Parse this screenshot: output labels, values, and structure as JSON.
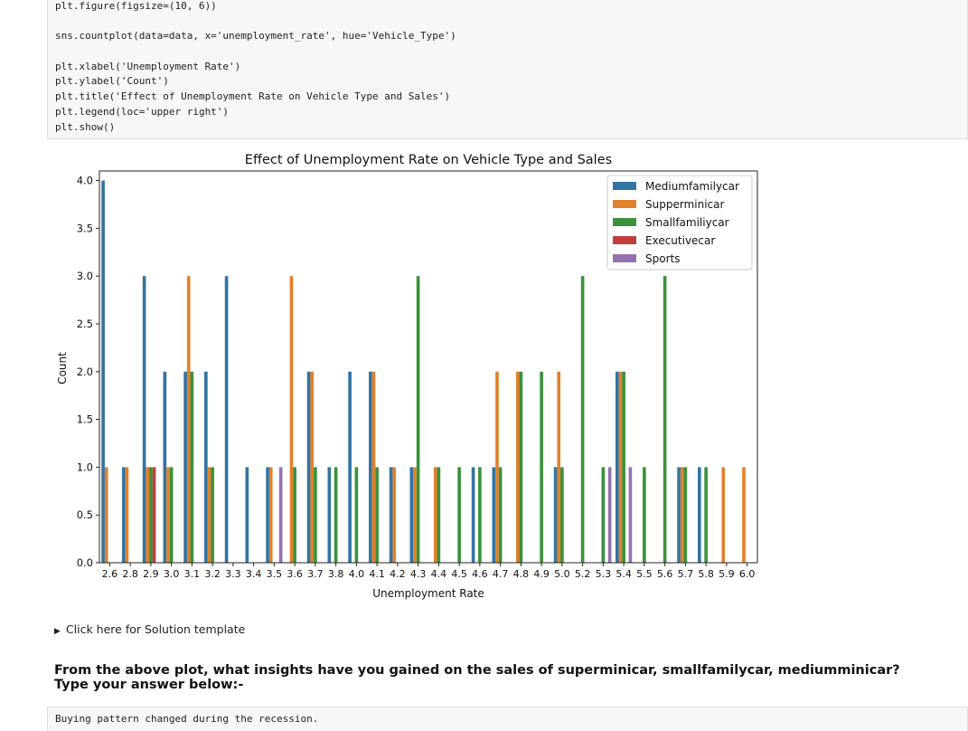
{
  "code_cell": {
    "lines": [
      "plt.figure(figsize=(10, 6))",
      "",
      "sns.countplot(data=data, x='unemployment_rate', hue='Vehicle_Type')",
      "",
      "plt.xlabel('Unemployment Rate')",
      "plt.ylabel('Count')",
      "plt.title('Effect of Unemployment Rate on Vehicle Type and Sales')",
      "plt.legend(loc='upper right')",
      "plt.show()"
    ]
  },
  "chart_data": {
    "type": "bar",
    "title": "Effect of Unemployment Rate on Vehicle Type and Sales",
    "xlabel": "Unemployment Rate",
    "ylabel": "Count",
    "ylim": [
      0,
      4.1
    ],
    "yticks": [
      "0.0",
      "0.5",
      "1.0",
      "1.5",
      "2.0",
      "2.5",
      "3.0",
      "3.5",
      "4.0"
    ],
    "legend_position": "upper right",
    "categories": [
      "2.6",
      "2.8",
      "2.9",
      "3.0",
      "3.1",
      "3.2",
      "3.3",
      "3.4",
      "3.5",
      "3.6",
      "3.7",
      "3.8",
      "4.0",
      "4.1",
      "4.2",
      "4.3",
      "4.4",
      "4.5",
      "4.6",
      "4.7",
      "4.8",
      "4.9",
      "5.0",
      "5.2",
      "5.3",
      "5.4",
      "5.5",
      "5.6",
      "5.7",
      "5.8",
      "5.9",
      "6.0"
    ],
    "series": [
      {
        "name": "Mediumfamilycar",
        "color": "#3274a1",
        "values": [
          4,
          1,
          3,
          2,
          2,
          2,
          3,
          1,
          1,
          0,
          2,
          1,
          2,
          2,
          1,
          1,
          0,
          0,
          1,
          1,
          0,
          0,
          1,
          0,
          0,
          2,
          0,
          0,
          1,
          1,
          0,
          0
        ]
      },
      {
        "name": "Supperminicar",
        "color": "#e1812c",
        "values": [
          1,
          1,
          1,
          1,
          3,
          1,
          0,
          0,
          1,
          3,
          2,
          0,
          0,
          2,
          1,
          1,
          1,
          0,
          0,
          2,
          2,
          0,
          2,
          0,
          0,
          2,
          0,
          0,
          1,
          0,
          1,
          1
        ]
      },
      {
        "name": "Smallfamiliycar",
        "color": "#3a923a",
        "values": [
          0,
          0,
          1,
          1,
          2,
          1,
          0,
          0,
          0,
          1,
          1,
          1,
          1,
          1,
          0,
          3,
          1,
          1,
          1,
          1,
          2,
          2,
          1,
          3,
          1,
          2,
          1,
          3,
          1,
          1,
          0,
          0
        ]
      },
      {
        "name": "Executivecar",
        "color": "#c03d3e",
        "values": [
          0,
          0,
          1,
          0,
          0,
          0,
          0,
          0,
          0,
          0,
          0,
          0,
          0,
          0,
          0,
          0,
          0,
          0,
          0,
          0,
          0,
          0,
          0,
          0,
          0,
          0,
          0,
          0,
          0,
          0,
          0,
          0
        ]
      },
      {
        "name": "Sports",
        "color": "#9372b2",
        "values": [
          0,
          0,
          0,
          0,
          0,
          0,
          0,
          0,
          1,
          0,
          0,
          0,
          0,
          0,
          0,
          0,
          0,
          0,
          0,
          0,
          0,
          0,
          0,
          0,
          1,
          1,
          0,
          0,
          0,
          0,
          0,
          0
        ]
      }
    ]
  },
  "details": {
    "label": "Click here for Solution template"
  },
  "question": {
    "line1": "From the above plot, what insights have you gained on the sales of superminicar, smallfamilycar, mediumminicar?",
    "line2": "Type your answer below:-"
  },
  "answer_cell": {
    "text": "Buying pattern changed during the recession."
  }
}
